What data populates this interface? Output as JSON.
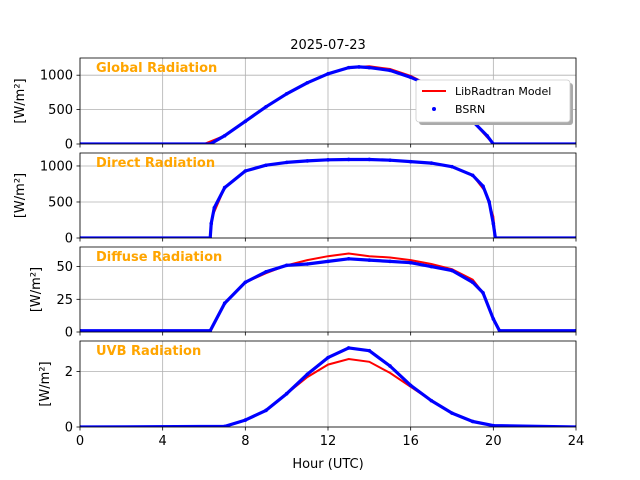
{
  "chart_data": {
    "type": "line",
    "title": "2025-07-23",
    "xlabel": "Hour (UTC)",
    "xlim": [
      0,
      24
    ],
    "xticks": [
      0,
      4,
      8,
      12,
      16,
      20,
      24
    ],
    "grid": true,
    "legend": {
      "placement": "top-right of first panel",
      "entries": [
        {
          "name": "LibRadtran Model",
          "color": "#ff0000",
          "style": "line"
        },
        {
          "name": "BSRN",
          "color": "#0000ff",
          "style": "dots"
        }
      ]
    },
    "panels": [
      {
        "label": "Global Radiation",
        "ylabel": "[W/m²]",
        "ylim": [
          0,
          1250
        ],
        "yticks": [
          0,
          500,
          1000
        ],
        "series": [
          {
            "name": "LibRadtran Model",
            "x": [
              6.0,
              7,
              8,
              9,
              10,
              11,
              12,
              13,
              14,
              15,
              16,
              17,
              18,
              19,
              20.0
            ],
            "y": [
              0,
              120,
              330,
              540,
              730,
              890,
              1020,
              1110,
              1130,
              1090,
              990,
              840,
              650,
              330,
              0
            ]
          },
          {
            "name": "BSRN",
            "x": [
              0,
              6.3,
              7,
              8,
              9,
              10,
              11,
              12,
              13,
              13.5,
              14,
              15,
              16,
              17,
              18,
              19,
              19.7,
              20.0,
              24
            ],
            "y": [
              0,
              0,
              120,
              330,
              540,
              730,
              890,
              1020,
              1110,
              1120,
              1110,
              1070,
              970,
              840,
              650,
              330,
              120,
              0,
              0
            ]
          }
        ]
      },
      {
        "label": "Direct Radiation",
        "ylabel": "[W/m²]",
        "ylim": [
          0,
          1180
        ],
        "yticks": [
          0,
          500,
          1000
        ],
        "series": [
          {
            "name": "LibRadtran Model",
            "x": [
              6.3,
              6.4,
              7,
              8,
              9,
              10,
              11,
              12,
              13,
              14,
              15,
              16,
              17,
              18,
              19,
              19.6,
              20.0,
              20.1
            ],
            "y": [
              0,
              300,
              700,
              930,
              1010,
              1050,
              1070,
              1085,
              1090,
              1090,
              1080,
              1060,
              1040,
              990,
              870,
              650,
              300,
              0
            ]
          },
          {
            "name": "BSRN",
            "x": [
              0,
              6.3,
              6.35,
              6.5,
              7,
              8,
              9,
              10,
              11,
              12,
              13,
              14,
              15,
              16,
              17,
              18,
              19,
              19.5,
              19.8,
              20.0,
              20.1,
              24
            ],
            "y": [
              0,
              0,
              200,
              420,
              700,
              930,
              1010,
              1050,
              1070,
              1085,
              1090,
              1090,
              1080,
              1060,
              1040,
              990,
              870,
              720,
              500,
              200,
              0,
              0
            ]
          }
        ]
      },
      {
        "label": "Diffuse Radiation",
        "ylabel": "[W/m²]",
        "ylim": [
          0,
          65
        ],
        "yticks": [
          0,
          25,
          50
        ],
        "series": [
          {
            "name": "LibRadtran Model",
            "x": [
              6.3,
              7,
              8,
              9,
              10,
              11,
              12,
              13,
              14,
              15,
              16,
              17,
              18,
              19,
              19.5,
              20.0
            ],
            "y": [
              0,
              22,
              38,
              45,
              51,
              55,
              58,
              60,
              58,
              57,
              55,
              52,
              48,
              40,
              30,
              10
            ]
          },
          {
            "name": "BSRN",
            "x": [
              0,
              6.3,
              7,
              8,
              9,
              10,
              11,
              12,
              13,
              14,
              15,
              16,
              17,
              18,
              19,
              19.5,
              20.0,
              20.3,
              24
            ],
            "y": [
              1,
              1,
              22,
              38,
              46,
              51,
              52,
              54,
              56,
              55,
              54,
              53,
              50,
              47,
              38,
              30,
              10,
              1,
              1
            ]
          }
        ]
      },
      {
        "label": "UVB Radiation",
        "ylabel": "[W/m²]",
        "ylim": [
          0,
          3.1
        ],
        "yticks": [
          0,
          2
        ],
        "series": [
          {
            "name": "LibRadtran Model",
            "x": [
              0,
              7,
              8,
              9,
              10,
              11,
              12,
              13,
              14,
              15,
              16,
              17,
              18,
              19,
              20,
              24
            ],
            "y": [
              0,
              0.02,
              0.25,
              0.6,
              1.2,
              1.8,
              2.25,
              2.45,
              2.35,
              1.95,
              1.45,
              0.95,
              0.5,
              0.2,
              0.05,
              0
            ]
          },
          {
            "name": "BSRN",
            "x": [
              0,
              7,
              8,
              9,
              10,
              11,
              12,
              13,
              14,
              15,
              16,
              17,
              18,
              19,
              20,
              24
            ],
            "y": [
              0,
              0.02,
              0.25,
              0.6,
              1.2,
              1.9,
              2.5,
              2.85,
              2.75,
              2.2,
              1.5,
              0.95,
              0.5,
              0.2,
              0.05,
              0
            ]
          }
        ]
      }
    ]
  }
}
